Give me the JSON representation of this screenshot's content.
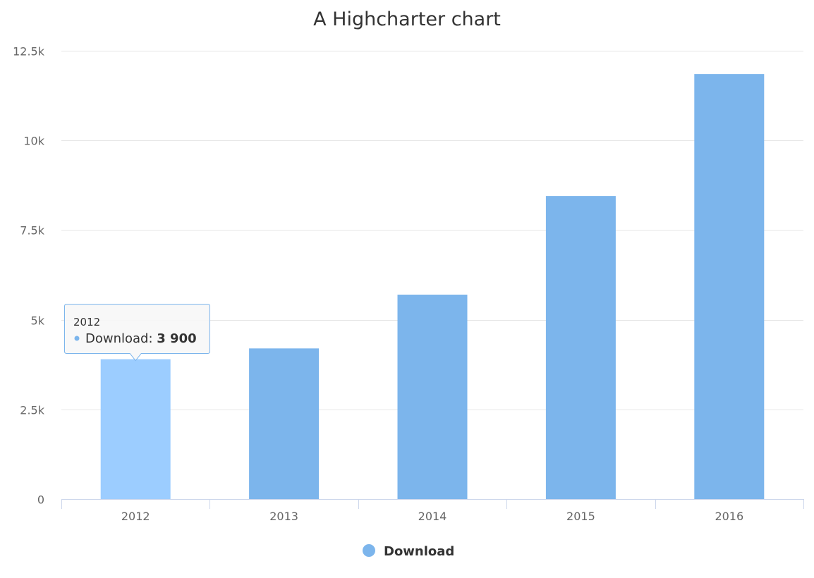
{
  "chart_data": {
    "type": "bar",
    "title": "A Highcharter chart",
    "xlabel": "",
    "ylabel": "",
    "categories": [
      "2012",
      "2013",
      "2014",
      "2015",
      "2016"
    ],
    "series": [
      {
        "name": "Download",
        "values": [
          3900,
          4200,
          5700,
          8450,
          11850
        ]
      }
    ],
    "ylim": [
      0,
      12500
    ],
    "y_ticks": [
      0,
      2500,
      5000,
      7500,
      10000,
      12500
    ],
    "y_tick_labels": [
      "0",
      "2.5k",
      "5k",
      "7.5k",
      "10k",
      "12.5k"
    ],
    "grid": true,
    "legend_position": "bottom-center",
    "hovered_index": 0
  },
  "tooltip": {
    "header": "2012",
    "series_label": "Download: ",
    "value_text": "3 900"
  },
  "colors": {
    "bar": "#7cb5ec",
    "bar_hover": "#9ccdff",
    "grid": "#e6e6e6",
    "axis": "#ccd6eb",
    "tooltip_border": "#7cb5ec",
    "tooltip_bg": "#f7f7f7"
  }
}
